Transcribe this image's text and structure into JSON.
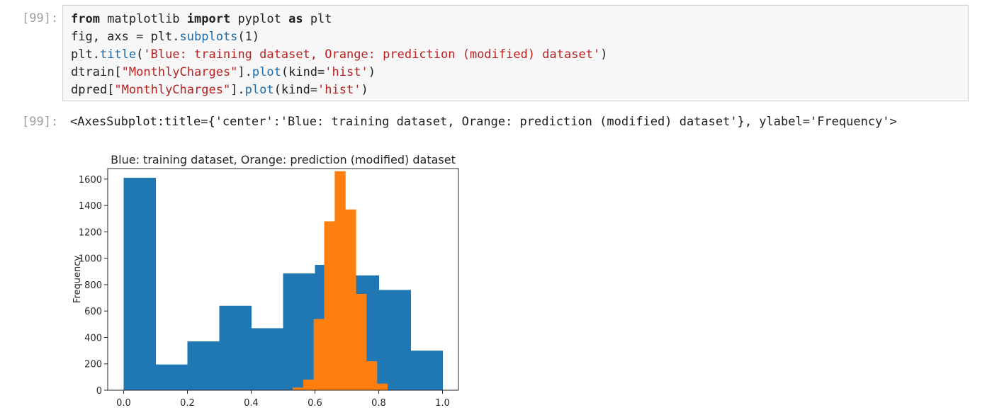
{
  "input_cell": {
    "prompt": "[99]:",
    "code_lines": [
      "from matplotlib import pyplot as plt",
      "fig, axs = plt.subplots(1)",
      "plt.title('Blue: training dataset, Orange: prediction (modified) dataset')",
      "dtrain[\"MonthlyCharges\"].plot(kind='hist')",
      "dpred[\"MonthlyCharges\"].plot(kind='hist')"
    ]
  },
  "output_cell": {
    "prompt": "[99]:",
    "text": "<AxesSubplot:title={'center':'Blue: training dataset, Orange: prediction (modified) dataset'}, ylabel='Frequency'>"
  },
  "chart_data": {
    "type": "bar",
    "title": "Blue: training dataset, Orange: prediction (modified) dataset",
    "xlabel": "",
    "ylabel": "Frequency",
    "xlim": [
      -0.05,
      1.05
    ],
    "ylim": [
      0,
      1680
    ],
    "xticks": [
      "0.0",
      "0.2",
      "0.4",
      "0.6",
      "0.8",
      "1.0"
    ],
    "yticks": [
      "0",
      "200",
      "400",
      "600",
      "800",
      "1000",
      "1200",
      "1400",
      "1600"
    ],
    "series": [
      {
        "color": "#1f77b4",
        "bin_edges": [
          0.0,
          0.1,
          0.2,
          0.3,
          0.4,
          0.5,
          0.6,
          0.7,
          0.8,
          0.9,
          1.0
        ],
        "values": [
          1610,
          195,
          370,
          640,
          470,
          885,
          950,
          870,
          760,
          300
        ]
      },
      {
        "color": "#ff7f0e",
        "bin_edges": [
          0.53,
          0.563,
          0.596,
          0.629,
          0.662,
          0.695,
          0.728,
          0.761,
          0.794,
          0.827,
          0.86
        ],
        "values": [
          20,
          80,
          540,
          1280,
          1660,
          1370,
          730,
          220,
          50,
          0
        ]
      }
    ]
  }
}
